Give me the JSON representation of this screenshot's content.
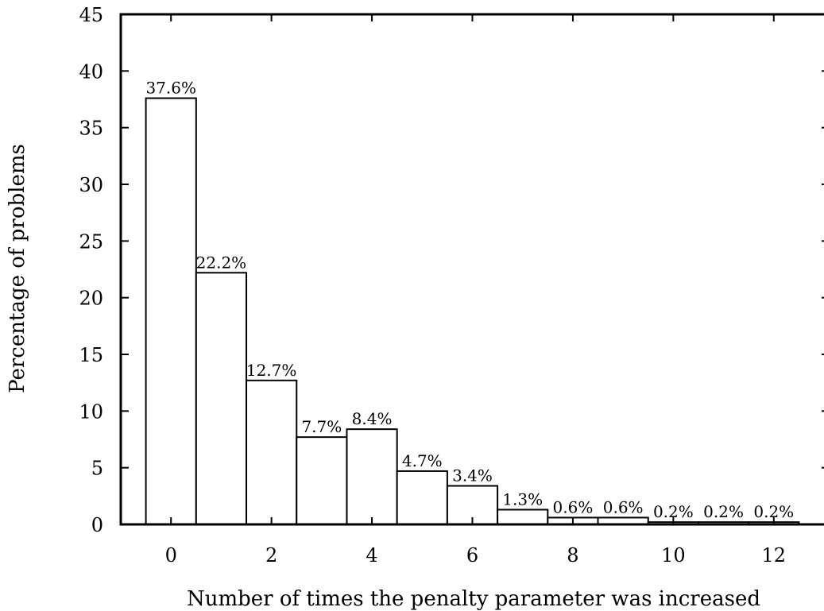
{
  "chart_data": {
    "type": "bar",
    "xlabel": "Number of times the penalty parameter was increased",
    "ylabel": "Percentage of problems",
    "xlim": [
      -1,
      13
    ],
    "ylim": [
      0,
      45
    ],
    "x_ticks": [
      0,
      2,
      4,
      6,
      8,
      10,
      12
    ],
    "y_ticks": [
      0,
      5,
      10,
      15,
      20,
      25,
      30,
      35,
      40,
      45
    ],
    "x_tick_labels": [
      "0",
      "2",
      "4",
      "6",
      "8",
      "10",
      "12"
    ],
    "y_tick_labels": [
      "0",
      "5",
      "10",
      "15",
      "20",
      "25",
      "30",
      "35",
      "40",
      "45"
    ],
    "categories": [
      0,
      1,
      2,
      3,
      4,
      5,
      6,
      7,
      8,
      9,
      10,
      11,
      12
    ],
    "values": [
      37.6,
      22.2,
      12.7,
      7.7,
      8.4,
      4.7,
      3.4,
      1.3,
      0.6,
      0.6,
      0.2,
      0.2,
      0.2
    ],
    "data_labels": [
      "37.6%",
      "22.2%",
      "12.7%",
      "7.7%",
      "8.4%",
      "4.7%",
      "3.4%",
      "1.3%",
      "0.6%",
      "0.6%",
      "0.2%",
      "0.2%",
      "0.2%"
    ],
    "grid": false,
    "legend": "none",
    "colors": {
      "bar_fill": "#ffffff",
      "bar_stroke": "#000000",
      "axis": "#000000"
    }
  }
}
